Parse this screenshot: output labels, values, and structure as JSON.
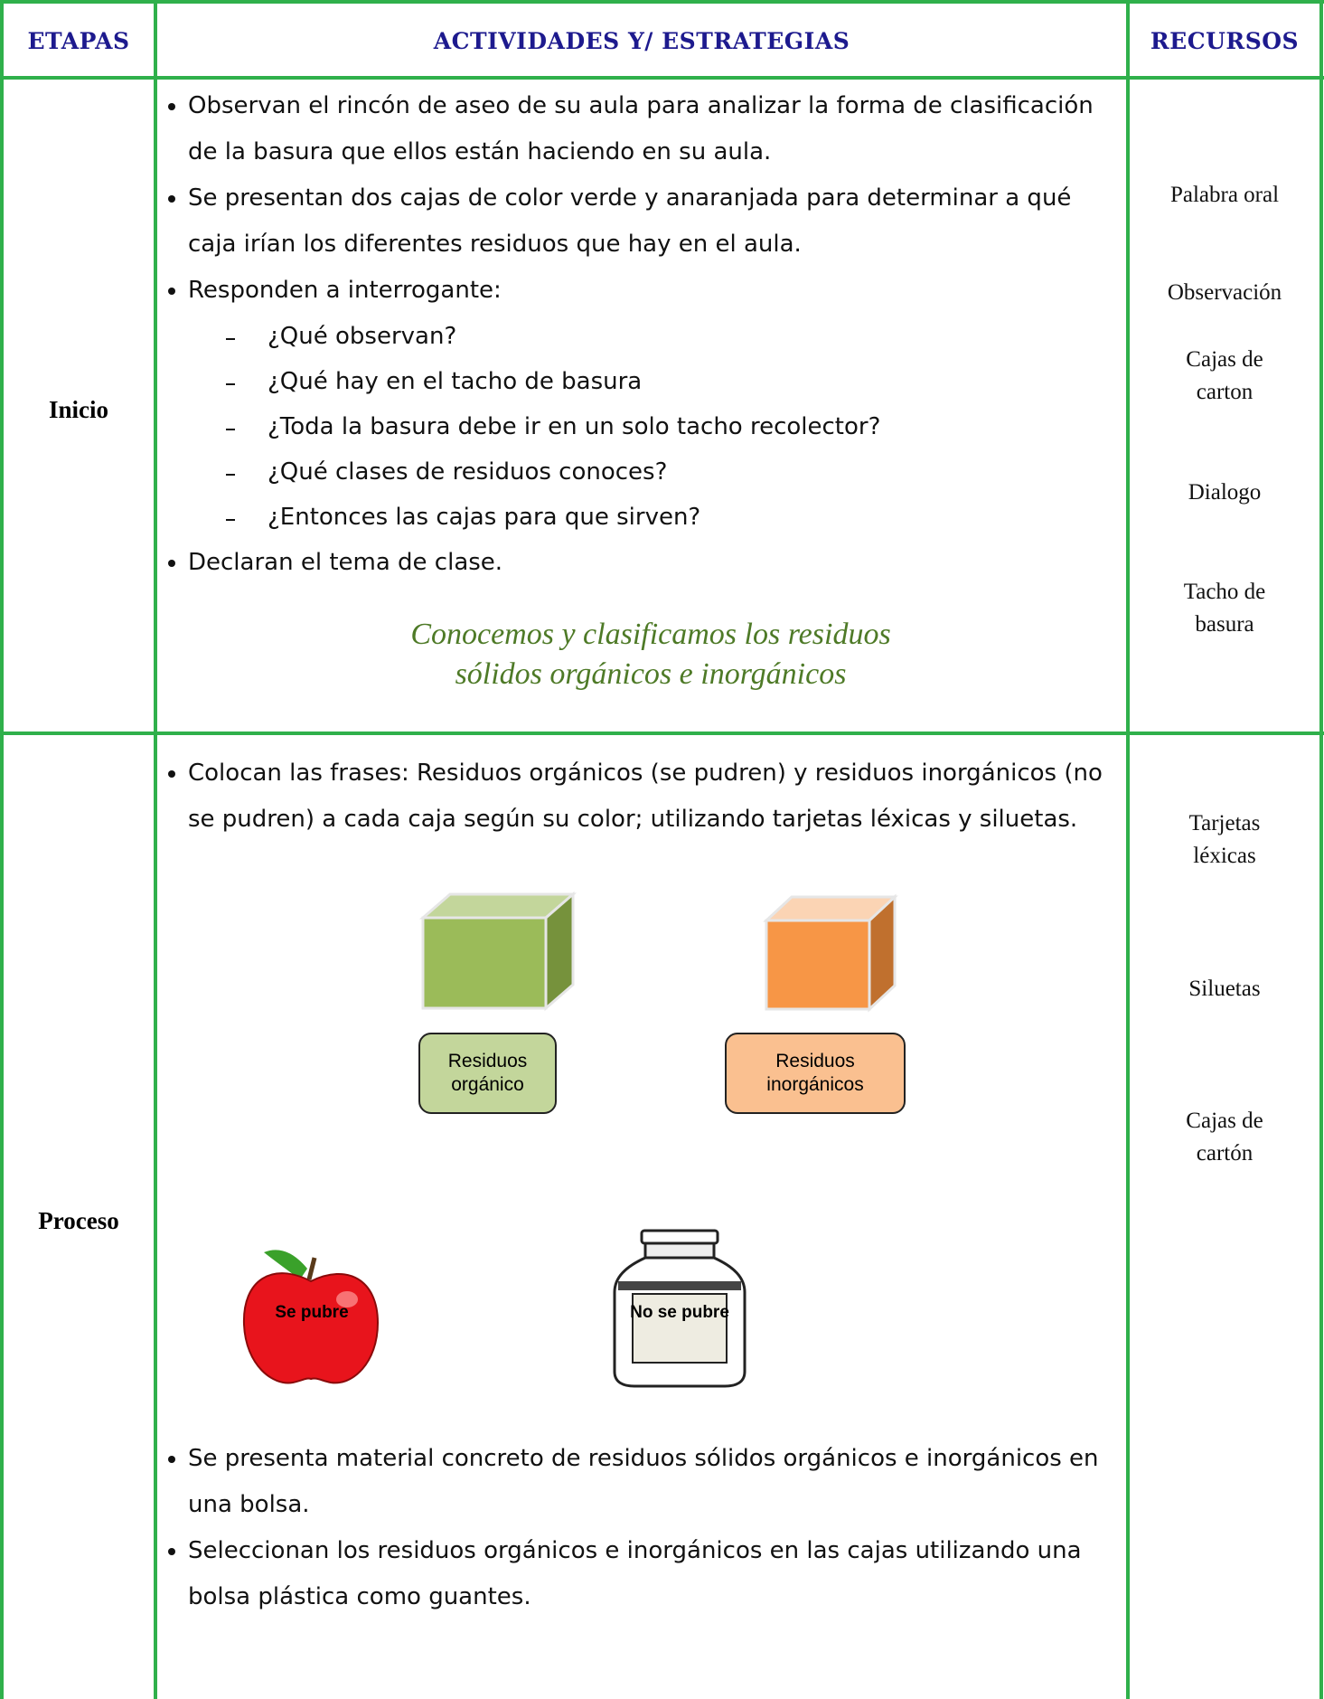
{
  "table": {
    "headers": [
      "ETAPAS",
      "ACTIVIDADES Y/ ESTRATEGIAS",
      "RECURSOS"
    ],
    "rows": [
      {
        "stage": "Inicio",
        "activities": [
          {
            "text": "Observan el rincón de aseo de su aula para analizar la forma de clasificación de la basura que ellos están haciendo en su aula."
          },
          {
            "text": "Se presentan dos cajas de color verde y anaranjada para determinar a qué caja irían los diferentes residuos que hay en el aula."
          },
          {
            "text": "Responden a interrogante:",
            "subitems": [
              "¿Qué observan?",
              "¿Qué hay en el tacho de basura",
              "¿Toda la basura debe ir en un solo tacho recolector?",
              "¿Qué clases de residuos conoces?",
              "¿Entonces las cajas para que sirven?"
            ]
          },
          {
            "text": "Declaran el tema de clase."
          }
        ],
        "topic": [
          "Conocemos y clasificamos los residuos",
          "sólidos orgánicos e inorgánicos"
        ],
        "resources": [
          "Palabra oral",
          "Observación",
          "Cajas de carton",
          "Dialogo",
          "Tacho de basura"
        ]
      },
      {
        "stage": "Proceso",
        "activities": [
          {
            "text": "Colocan las frases: Residuos orgánicos (se pudren) y residuos inorgánicos (no se pudren) a cada caja según su color; utilizando tarjetas léxicas y siluetas."
          }
        ],
        "figures": {
          "box_labels": [
            "Residuos orgánico",
            "Residuos inorgánicos"
          ],
          "item_labels": [
            "Se pubre",
            "No se pubre"
          ]
        },
        "activities_after": [
          {
            "text": "Se presenta material concreto de residuos sólidos orgánicos e inorgánicos en una bolsa."
          },
          {
            "text": "Seleccionan los residuos orgánicos e inorgánicos en las cajas utilizando una bolsa plástica como guantes."
          }
        ],
        "resources": [
          "Tarjetas léxicas",
          "Siluetas",
          "Cajas de cartón"
        ]
      }
    ]
  }
}
